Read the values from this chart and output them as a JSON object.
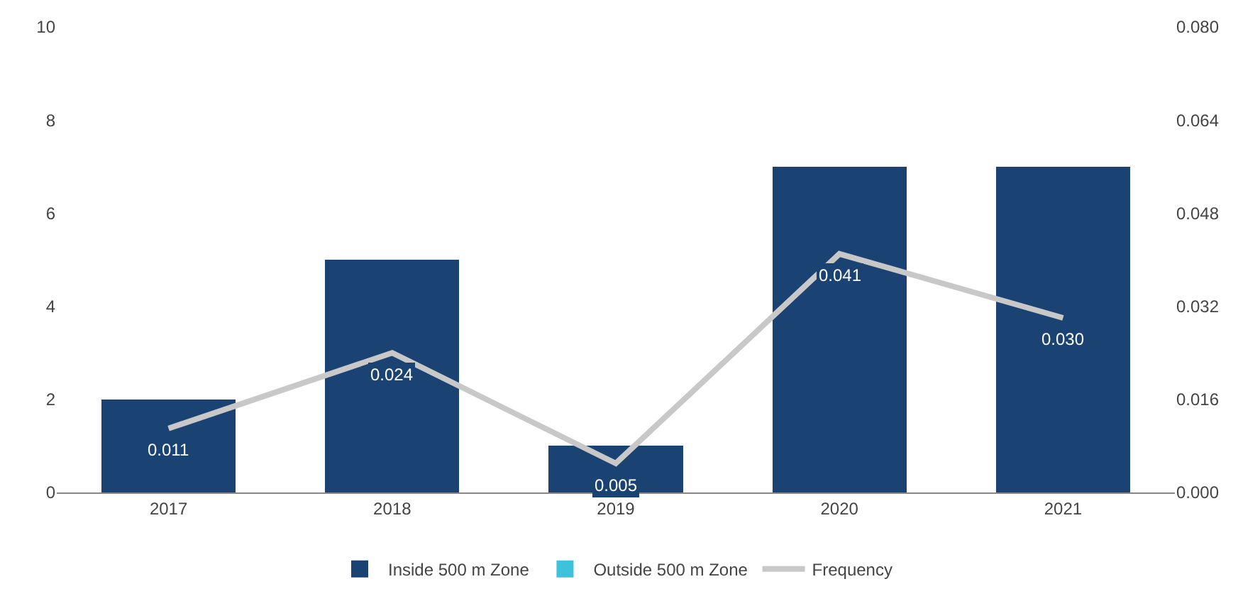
{
  "chart_data": {
    "type": "bar",
    "categories": [
      "2017",
      "2018",
      "2019",
      "2020",
      "2021"
    ],
    "series": [
      {
        "name": "Inside 500 m Zone",
        "color": "#1a4273",
        "values": [
          2,
          5,
          1,
          7,
          7
        ]
      },
      {
        "name": "Outside 500 m Zone",
        "color": "#3cc2da",
        "values": [
          null,
          null,
          null,
          null,
          null
        ]
      },
      {
        "name": "Frequency",
        "type": "line",
        "axis": "y2",
        "color": "#c8c8c8",
        "values": [
          0.011,
          0.024,
          0.005,
          0.041,
          0.03
        ],
        "value_labels": [
          "0.011",
          "0.024",
          "0.005",
          "0.041",
          "0.030"
        ]
      }
    ],
    "stacked": true,
    "ylim": [
      0,
      10
    ],
    "yticks": [
      0,
      2,
      4,
      6,
      8,
      10
    ],
    "y2lim": [
      0,
      0.08
    ],
    "y2ticks": [
      {
        "value": 0,
        "label": "0.000"
      },
      {
        "value": 0.016,
        "label": "0.016"
      },
      {
        "value": 0.032,
        "label": "0.032"
      },
      {
        "value": 0.048,
        "label": "0.048"
      },
      {
        "value": 0.064,
        "label": "0.064"
      },
      {
        "value": 0.08,
        "label": "0.080"
      }
    ],
    "legend": "bottom",
    "marker": "none",
    "line_style": "solid"
  }
}
